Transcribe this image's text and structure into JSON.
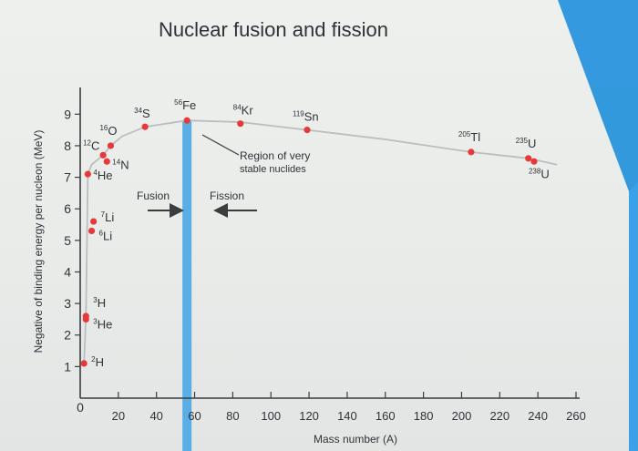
{
  "title": "Nuclear fusion and fission",
  "colors": {
    "background": "#eceeec",
    "axis": "#3a3d40",
    "curve": "#b9bec0",
    "point": "#e63a3a",
    "boundary": "#5aaee6",
    "accent_blue": "#1f8fdc"
  },
  "chart_data": {
    "type": "scatter",
    "title": "Nuclear fusion and fission",
    "xlabel": "Mass number (A)",
    "ylabel": "Negative of binding energy per nucleon (MeV)",
    "xlim": [
      0,
      260
    ],
    "ylim": [
      0,
      9.5
    ],
    "x_ticks": [
      "20",
      "40",
      "60",
      "80",
      "100",
      "120",
      "140",
      "160",
      "180",
      "200",
      "220",
      "240",
      "260"
    ],
    "y_ticks": [
      "1",
      "2",
      "3",
      "4",
      "5",
      "6",
      "7",
      "8",
      "9"
    ],
    "origin_label": "0",
    "grid": false,
    "points": [
      {
        "x": 2,
        "y": 1.1,
        "label": "2H"
      },
      {
        "x": 3,
        "y": 2.6,
        "label": "3H"
      },
      {
        "x": 3,
        "y": 2.5,
        "label": "3He"
      },
      {
        "x": 4,
        "y": 7.1,
        "label": "4He"
      },
      {
        "x": 6,
        "y": 5.3,
        "label": "6Li"
      },
      {
        "x": 7,
        "y": 5.6,
        "label": "7Li"
      },
      {
        "x": 12,
        "y": 7.7,
        "label": "12C"
      },
      {
        "x": 14,
        "y": 7.5,
        "label": "14N"
      },
      {
        "x": 16,
        "y": 8.0,
        "label": "16O"
      },
      {
        "x": 34,
        "y": 8.6,
        "label": "34S"
      },
      {
        "x": 56,
        "y": 8.8,
        "label": "56Fe"
      },
      {
        "x": 84,
        "y": 8.7,
        "label": "84Kr"
      },
      {
        "x": 119,
        "y": 8.5,
        "label": "119Sn"
      },
      {
        "x": 205,
        "y": 7.8,
        "label": "205Tl"
      },
      {
        "x": 235,
        "y": 7.6,
        "label": "235U"
      },
      {
        "x": 238,
        "y": 7.5,
        "label": "238U"
      }
    ],
    "curve": [
      [
        2,
        1.1
      ],
      [
        3,
        2.6
      ],
      [
        4,
        7.1
      ],
      [
        6,
        7.4
      ],
      [
        12,
        7.7
      ],
      [
        16,
        8.0
      ],
      [
        22,
        8.3
      ],
      [
        34,
        8.6
      ],
      [
        56,
        8.8
      ],
      [
        84,
        8.75
      ],
      [
        119,
        8.5
      ],
      [
        160,
        8.2
      ],
      [
        205,
        7.8
      ],
      [
        235,
        7.6
      ],
      [
        250,
        7.4
      ]
    ],
    "boundary_x": 56,
    "annotations": {
      "region_line1": "Region of very",
      "region_line2": "stable nuclides",
      "fusion": "Fusion",
      "fission": "Fission"
    }
  }
}
